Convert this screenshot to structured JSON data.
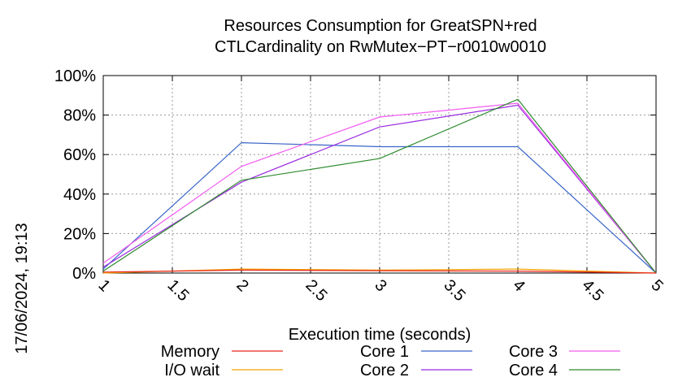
{
  "chart_data": {
    "type": "line",
    "title_line1": "Resources Consumption for GreatSPN+red",
    "title_line2": "CTLCardinality on RwMutex−PT−r0010w0010",
    "xlabel": "Execution time (seconds)",
    "ylabel": "",
    "timestamp": "17/06/2024, 19:13",
    "xlim": [
      1,
      5
    ],
    "ylim": [
      0,
      100
    ],
    "x_ticks": [
      1,
      1.5,
      2,
      2.5,
      3,
      3.5,
      4,
      4.5,
      5
    ],
    "x_tick_labels": [
      "1",
      "1.5",
      "2",
      "2.5",
      "3",
      "3.5",
      "4",
      "4.5",
      "5"
    ],
    "y_ticks": [
      0,
      20,
      40,
      60,
      80,
      100
    ],
    "y_tick_labels": [
      "0%",
      "20%",
      "40%",
      "60%",
      "80%",
      "100%"
    ],
    "grid": true,
    "legend_position": "bottom",
    "series": [
      {
        "name": "Memory",
        "color": "#e8251c",
        "x": [
          1,
          2,
          3,
          4,
          5
        ],
        "y": [
          0.5,
          1.5,
          1.2,
          1.0,
          0
        ]
      },
      {
        "name": "I/O wait",
        "color": "#f5a300",
        "x": [
          1,
          2,
          3,
          4,
          5
        ],
        "y": [
          0,
          2,
          1.5,
          2,
          0
        ]
      },
      {
        "name": "Core 1",
        "color": "#3a66c8",
        "x": [
          1,
          2,
          3,
          4,
          5
        ],
        "y": [
          2,
          66,
          64,
          64,
          0
        ]
      },
      {
        "name": "Core 2",
        "color": "#9b2be0",
        "x": [
          1,
          2,
          3,
          4,
          5
        ],
        "y": [
          3,
          46,
          74,
          85,
          0
        ]
      },
      {
        "name": "Core 3",
        "color": "#f25cf0",
        "x": [
          1,
          2,
          3,
          4,
          5
        ],
        "y": [
          5,
          54,
          79,
          86,
          0
        ]
      },
      {
        "name": "Core 4",
        "color": "#2e8b2e",
        "x": [
          1,
          2,
          3,
          4,
          5
        ],
        "y": [
          1,
          47,
          58,
          88,
          0
        ]
      }
    ]
  }
}
